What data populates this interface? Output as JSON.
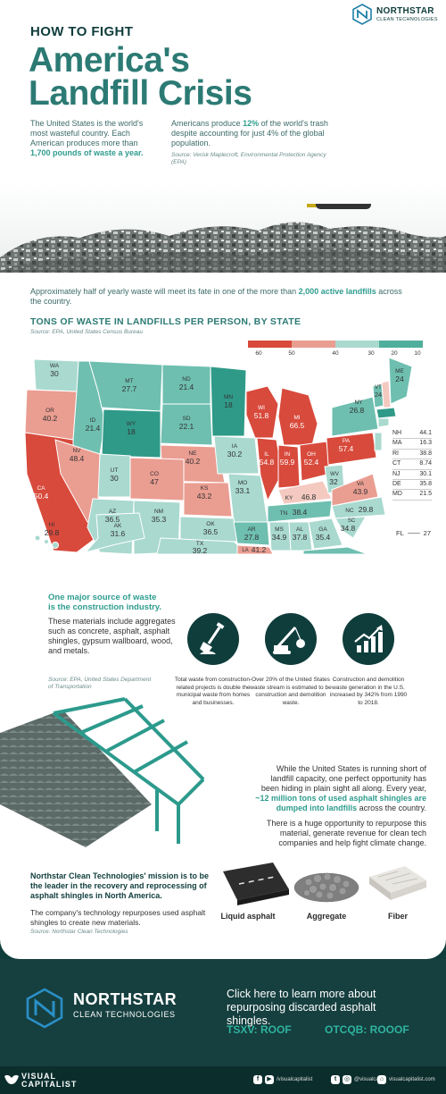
{
  "header": {
    "kicker": "HOW TO FIGHT",
    "title_line1": "America's",
    "title_line2": "Landfill Crisis",
    "brand_name": "NORTHSTAR",
    "brand_sub": "CLEAN TECHNOLOGIES"
  },
  "intro": {
    "left_text": "The United States is the world's most wasteful country. Each American produces more than",
    "left_highlight": "1,700 pounds of waste a year.",
    "right_pre": "Americans produce",
    "right_highlight": "12%",
    "right_post": "of the world's trash despite accounting for just 4% of the global population.",
    "source": "Source: Verisk Maplecroft, Environmental Protection Agency (EPA)"
  },
  "map_section": {
    "intro_pre": "Approximately half of yearly waste will meet its fate in one of the more than",
    "intro_highlight": "2,000 active landfills",
    "intro_post": "across the country.",
    "title": "TONS OF WASTE IN LANDFILLS PER PERSON, BY STATE",
    "source": "Source: EPA, United States Census Bureau",
    "legend_ticks": [
      "60",
      "50",
      "40",
      "30",
      "20",
      "10"
    ],
    "colors": {
      "c1": "#d84a3c",
      "c2": "#ea9d91",
      "c3": "#f3c9c0",
      "c4": "#a9d9cf",
      "c5": "#6ebfb0",
      "c6": "#2f9a88"
    },
    "states": [
      {
        "abbr": "WA",
        "value": "30"
      },
      {
        "abbr": "OR",
        "value": "40.2"
      },
      {
        "abbr": "ID",
        "value": "21.4"
      },
      {
        "abbr": "MT",
        "value": "27.7"
      },
      {
        "abbr": "WY",
        "value": "18"
      },
      {
        "abbr": "ND",
        "value": "21.4"
      },
      {
        "abbr": "SD",
        "value": "22.1"
      },
      {
        "abbr": "NE",
        "value": "40.2"
      },
      {
        "abbr": "MN",
        "value": "18"
      },
      {
        "abbr": "WI",
        "value": "51.8"
      },
      {
        "abbr": "MI",
        "value": "66.5"
      },
      {
        "abbr": "NY",
        "value": "26.8"
      },
      {
        "abbr": "VT",
        "value": "24"
      },
      {
        "abbr": "ME",
        "value": "24"
      },
      {
        "abbr": "CA",
        "value": "50.4"
      },
      {
        "abbr": "NV",
        "value": "48.4"
      },
      {
        "abbr": "UT",
        "value": "30"
      },
      {
        "abbr": "CO",
        "value": "47"
      },
      {
        "abbr": "KS",
        "value": "43.2"
      },
      {
        "abbr": "IA",
        "value": "30.2"
      },
      {
        "abbr": "MO",
        "value": "33.1"
      },
      {
        "abbr": "IL",
        "value": "54.8"
      },
      {
        "abbr": "IN",
        "value": "59.9"
      },
      {
        "abbr": "OH",
        "value": "52.4"
      },
      {
        "abbr": "PA",
        "value": "57.4"
      },
      {
        "abbr": "KY",
        "value": "46.8"
      },
      {
        "abbr": "WV",
        "value": "32"
      },
      {
        "abbr": "VA",
        "value": "43.9"
      },
      {
        "abbr": "NC",
        "value": "29.8"
      },
      {
        "abbr": "SC",
        "value": "34.8"
      },
      {
        "abbr": "TN",
        "value": "38.4"
      },
      {
        "abbr": "AZ",
        "value": "36.5"
      },
      {
        "abbr": "NM",
        "value": "35.3"
      },
      {
        "abbr": "OK",
        "value": "36.5"
      },
      {
        "abbr": "TX",
        "value": "39.2"
      },
      {
        "abbr": "AR",
        "value": "27.8"
      },
      {
        "abbr": "LA",
        "value": "41.2"
      },
      {
        "abbr": "MS",
        "value": "34.9"
      },
      {
        "abbr": "AL",
        "value": "37.8"
      },
      {
        "abbr": "GA",
        "value": "35.4"
      },
      {
        "abbr": "FL",
        "value": "27"
      },
      {
        "abbr": "HI",
        "value": "29.8"
      },
      {
        "abbr": "AK",
        "value": "31.6"
      }
    ],
    "northeast": [
      {
        "abbr": "NH",
        "value": "44.1"
      },
      {
        "abbr": "MA",
        "value": "16.3"
      },
      {
        "abbr": "RI",
        "value": "38.8"
      },
      {
        "abbr": "CT",
        "value": "8.74"
      },
      {
        "abbr": "NJ",
        "value": "30.1"
      },
      {
        "abbr": "DE",
        "value": "35.8"
      },
      {
        "abbr": "MD",
        "value": "21.5"
      }
    ]
  },
  "construction": {
    "head_line1": "One major source of waste",
    "head_line2": "is the construction industry.",
    "body": "These materials include aggregates such as concrete, asphalt, asphalt shingles, gypsum wallboard, wood, and metals.",
    "source": "Source: EPA, United States Department of Transportation",
    "facts": [
      {
        "icon": "shovel-icon",
        "text": "Total waste from construction-related projects is double the municipal waste from homes and businesses."
      },
      {
        "icon": "crane-wrecking-ball-icon",
        "text": "Over 20% of the United States waste stream is estimated to be construction and demolition waste."
      },
      {
        "icon": "growth-chart-icon",
        "text": "Construction and demolition waste generation in the U.S. increased by 342% from 1990 to 2018."
      }
    ]
  },
  "shingles": {
    "p1_pre": "While the United States is running short of landfill capacity, one perfect opportunity has been hiding in plain sight all along. Every year,",
    "p1_highlight": "~12 million tons of used asphalt shingles are dumped into landfills",
    "p1_post": "across the country.",
    "p2": "There is a huge opportunity to repurpose this material, generate revenue for clean tech companies and help fight climate change.",
    "mission": "Northstar Clean Technologies' mission is to be the leader in the recovery and reprocessing of asphalt shingles in North America.",
    "mission2": "The company's technology repurposes used asphalt shingles to create new materials.",
    "source": "Source: Northstar Clean Technologies",
    "materials": [
      "Liquid asphalt",
      "Aggregate",
      "Fiber"
    ]
  },
  "footer": {
    "brand_name": "NORTHSTAR",
    "brand_sub": "CLEAN TECHNOLOGIES",
    "cta": "Click here to learn more about repurposing discarded asphalt shingles.",
    "ticker1": "TSXV: ROOF",
    "ticker2": "OTCQB: ROOOF",
    "vc_line1": "VISUAL",
    "vc_line2": "CAPITALIST",
    "social1": "/visualcapitalist",
    "social2": "@visualcap",
    "social3": "visualcapitalist.com"
  }
}
